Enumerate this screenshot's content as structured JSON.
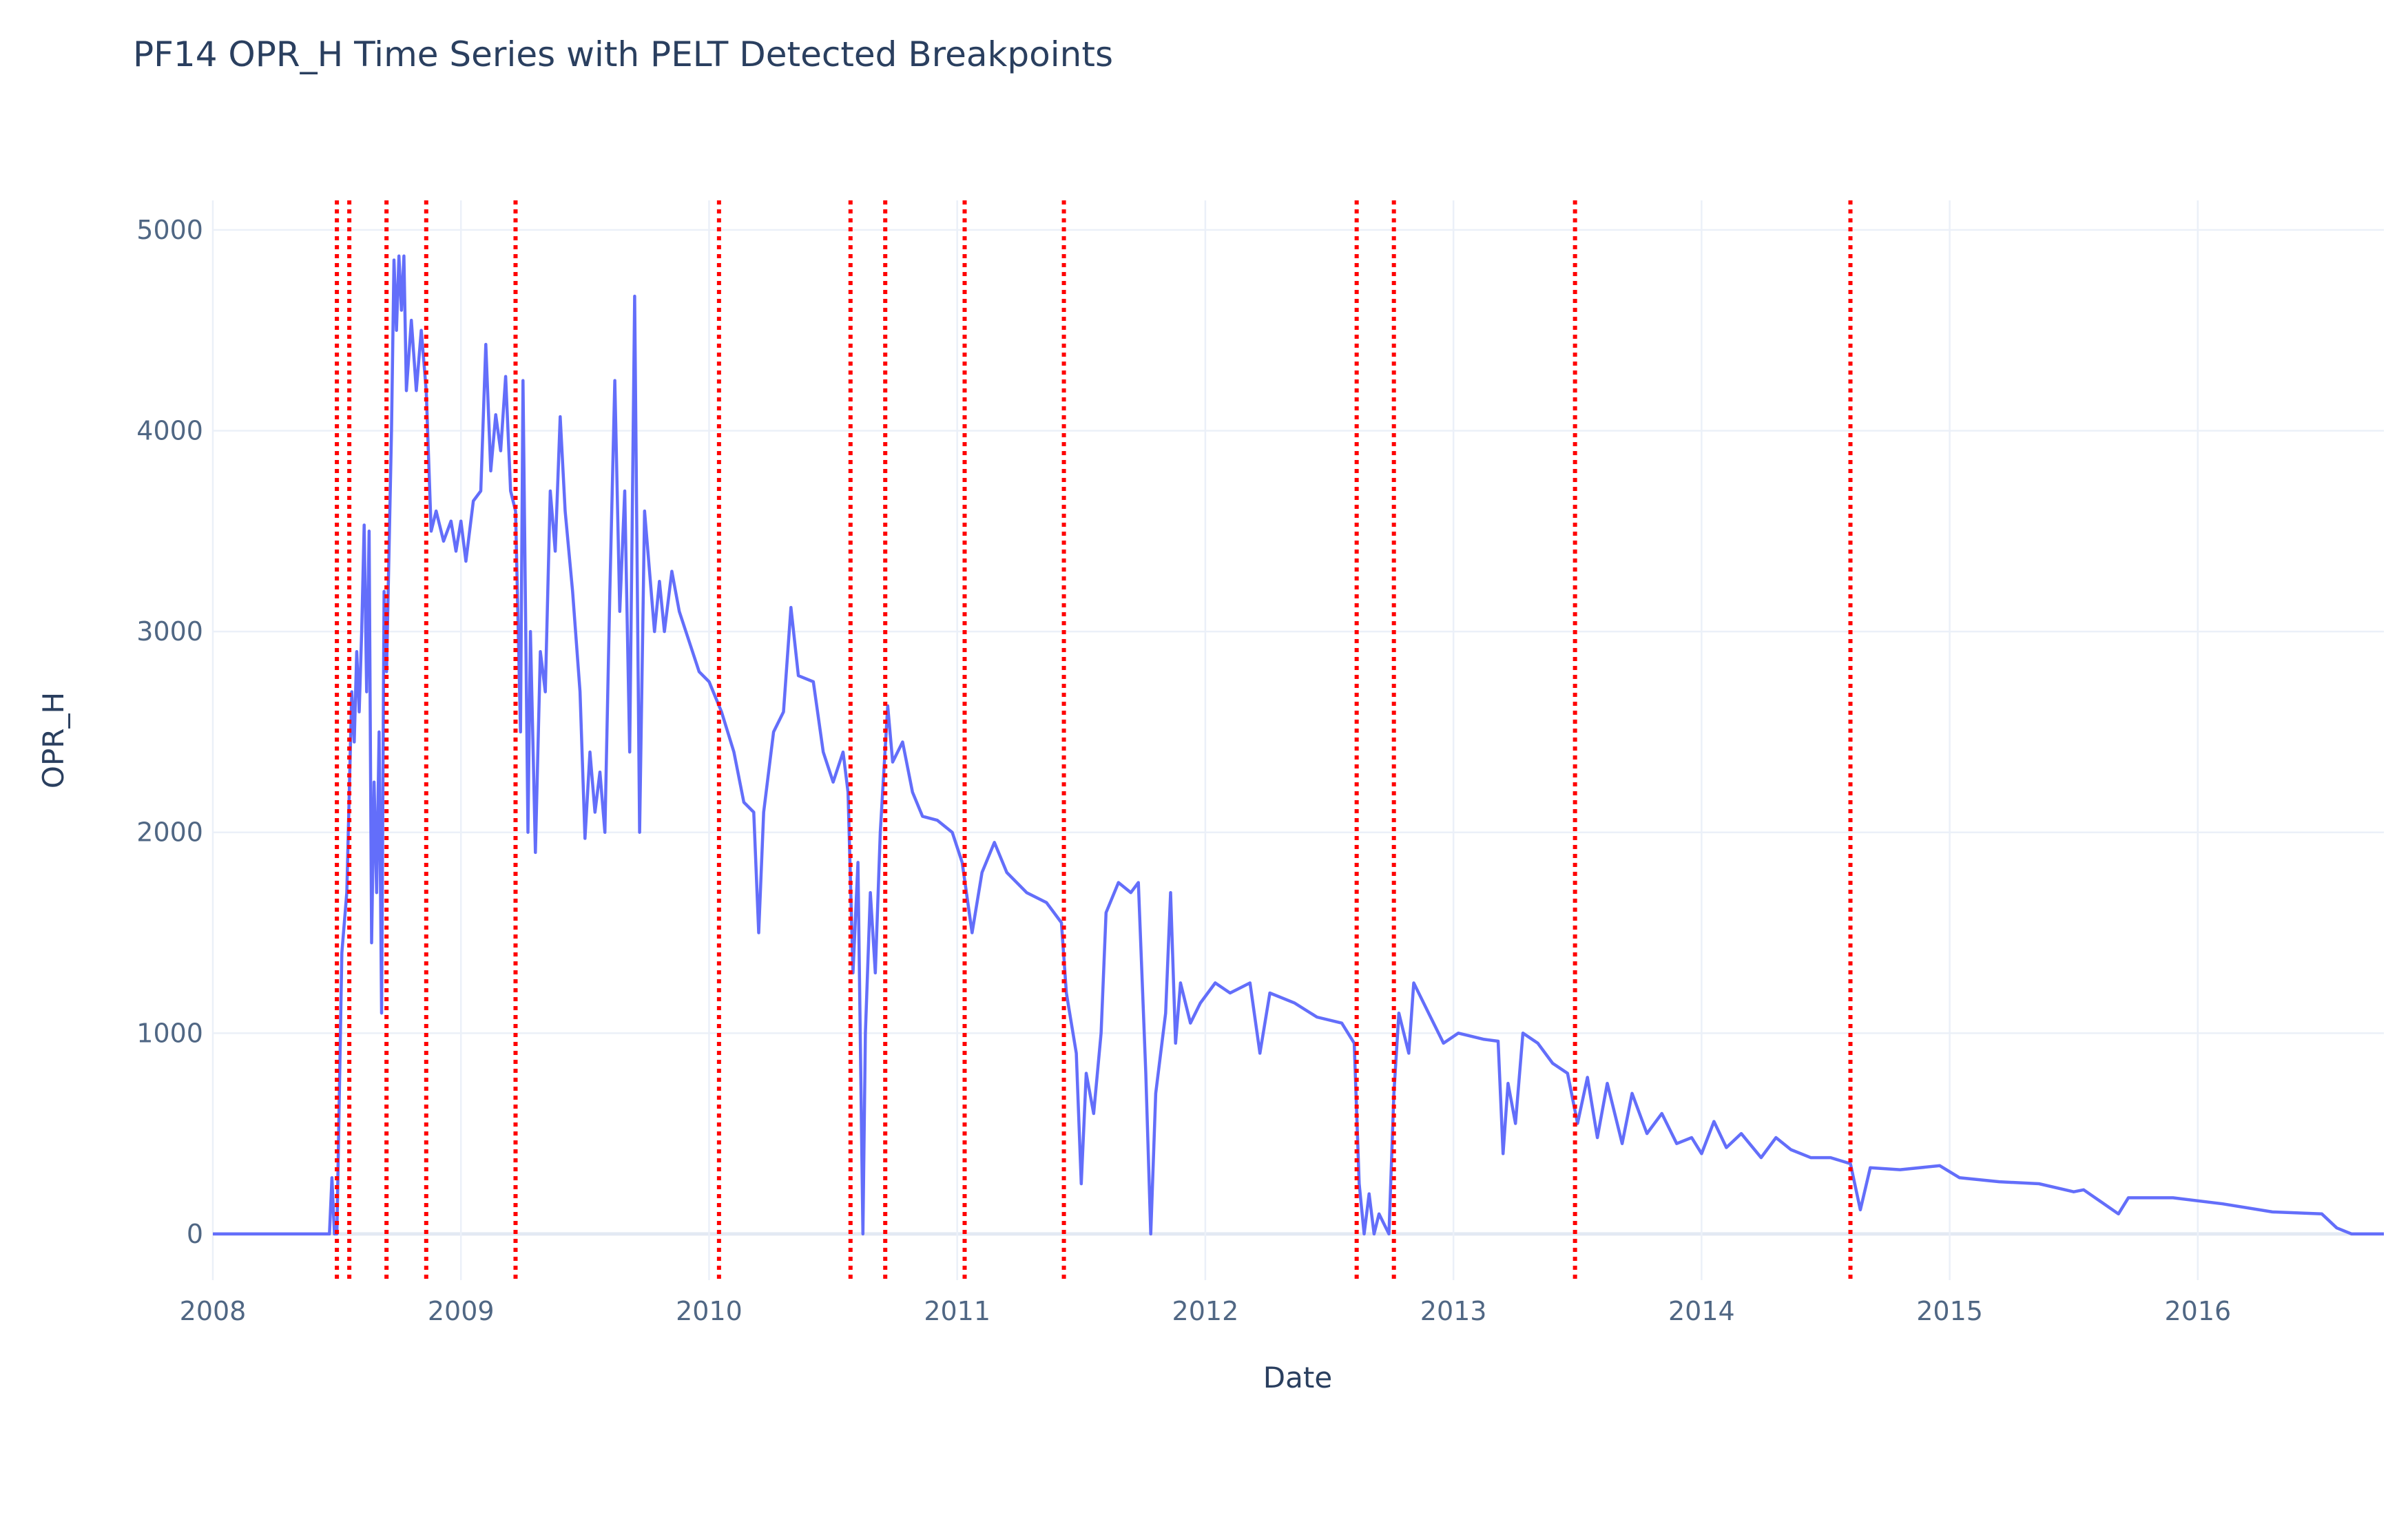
{
  "chart_data": {
    "type": "line",
    "title": "PF14 OPR_H Time Series with PELT Detected Breakpoints",
    "x_label": "Date",
    "y_label": "OPR_H",
    "x": [
      2008.0,
      2008.47,
      2008.48,
      2008.49,
      2008.5,
      2008.52,
      2008.54,
      2008.56,
      2008.57,
      2008.58,
      2008.59,
      2008.6,
      2008.61,
      2008.62,
      2008.63,
      2008.64,
      2008.65,
      2008.66,
      2008.67,
      2008.68,
      2008.69,
      2008.7,
      2008.72,
      2008.73,
      2008.74,
      2008.75,
      2008.76,
      2008.77,
      2008.78,
      2008.8,
      2008.82,
      2008.84,
      2008.86,
      2008.87,
      2008.88,
      2008.9,
      2008.93,
      2008.96,
      2008.98,
      2009.0,
      2009.02,
      2009.05,
      2009.08,
      2009.1,
      2009.12,
      2009.14,
      2009.16,
      2009.18,
      2009.2,
      2009.22,
      2009.24,
      2009.25,
      2009.27,
      2009.28,
      2009.3,
      2009.32,
      2009.34,
      2009.36,
      2009.38,
      2009.4,
      2009.42,
      2009.45,
      2009.48,
      2009.5,
      2009.52,
      2009.54,
      2009.56,
      2009.58,
      2009.6,
      2009.62,
      2009.64,
      2009.66,
      2009.68,
      2009.7,
      2009.72,
      2009.74,
      2009.76,
      2009.78,
      2009.8,
      2009.82,
      2009.85,
      2009.88,
      2009.92,
      2009.96,
      2010.0,
      2010.05,
      2010.1,
      2010.14,
      2010.18,
      2010.2,
      2010.22,
      2010.26,
      2010.3,
      2010.33,
      2010.36,
      2010.42,
      2010.46,
      2010.5,
      2010.54,
      2010.56,
      2010.58,
      2010.6,
      2010.62,
      2010.63,
      2010.65,
      2010.67,
      2010.69,
      2010.72,
      2010.74,
      2010.78,
      2010.82,
      2010.86,
      2010.92,
      2010.98,
      2011.02,
      2011.06,
      2011.1,
      2011.15,
      2011.2,
      2011.28,
      2011.36,
      2011.42,
      2011.44,
      2011.48,
      2011.5,
      2011.52,
      2011.55,
      2011.58,
      2011.6,
      2011.65,
      2011.7,
      2011.73,
      2011.76,
      2011.78,
      2011.8,
      2011.84,
      2011.86,
      2011.88,
      2011.9,
      2011.94,
      2011.98,
      2012.04,
      2012.1,
      2012.18,
      2012.22,
      2012.26,
      2012.36,
      2012.45,
      2012.55,
      2012.6,
      2012.62,
      2012.64,
      2012.66,
      2012.68,
      2012.7,
      2012.74,
      2012.76,
      2012.78,
      2012.82,
      2012.84,
      2012.9,
      2012.96,
      2013.02,
      2013.12,
      2013.18,
      2013.2,
      2013.22,
      2013.25,
      2013.28,
      2013.34,
      2013.4,
      2013.46,
      2013.5,
      2013.54,
      2013.58,
      2013.62,
      2013.68,
      2013.72,
      2013.78,
      2013.84,
      2013.9,
      2013.96,
      2014.0,
      2014.05,
      2014.1,
      2014.16,
      2014.24,
      2014.3,
      2014.36,
      2014.44,
      2014.52,
      2014.6,
      2014.64,
      2014.68,
      2014.8,
      2014.96,
      2015.04,
      2015.2,
      2015.36,
      2015.5,
      2015.54,
      2015.68,
      2015.72,
      2015.9,
      2016.1,
      2016.3,
      2016.5,
      2016.56,
      2016.62,
      2016.75
    ],
    "series": [
      {
        "color": "#636efa",
        "values": [
          0,
          0,
          280,
          0,
          0,
          1400,
          1700,
          2700,
          2450,
          2900,
          2600,
          3000,
          3530,
          2700,
          3500,
          1450,
          2250,
          1700,
          2500,
          1100,
          3200,
          2800,
          4000,
          4850,
          4500,
          4870,
          4600,
          4870,
          4200,
          4550,
          4200,
          4500,
          4200,
          3850,
          3500,
          3600,
          3450,
          3550,
          3400,
          3550,
          3350,
          3650,
          3700,
          4430,
          3800,
          4080,
          3900,
          4270,
          3700,
          3600,
          2500,
          4250,
          2000,
          3000,
          1900,
          2900,
          2700,
          3700,
          3400,
          4070,
          3600,
          3200,
          2700,
          1970,
          2400,
          2100,
          2300,
          2000,
          3200,
          4250,
          3100,
          3700,
          2400,
          4670,
          2000,
          3600,
          3300,
          3000,
          3250,
          3000,
          3300,
          3100,
          2950,
          2800,
          2750,
          2600,
          2400,
          2150,
          2100,
          1500,
          2100,
          2500,
          2600,
          3120,
          2780,
          2750,
          2400,
          2250,
          2400,
          2200,
          1300,
          1850,
          0,
          1000,
          1700,
          1300,
          2000,
          2630,
          2350,
          2450,
          2200,
          2080,
          2060,
          2000,
          1850,
          1500,
          1800,
          1950,
          1800,
          1700,
          1650,
          1550,
          1200,
          900,
          250,
          800,
          600,
          1000,
          1600,
          1750,
          1700,
          1750,
          800,
          0,
          700,
          1100,
          1700,
          950,
          1250,
          1050,
          1150,
          1250,
          1200,
          1250,
          900,
          1200,
          1150,
          1080,
          1050,
          950,
          250,
          0,
          200,
          0,
          100,
          0,
          700,
          1100,
          900,
          1250,
          1100,
          950,
          1000,
          970,
          960,
          400,
          750,
          550,
          1000,
          950,
          850,
          800,
          550,
          780,
          480,
          750,
          450,
          700,
          500,
          600,
          450,
          480,
          400,
          560,
          430,
          500,
          380,
          480,
          420,
          380,
          380,
          350,
          120,
          330,
          320,
          340,
          280,
          260,
          250,
          210,
          220,
          100,
          180,
          180,
          150,
          110,
          100,
          30,
          0,
          0
        ]
      }
    ],
    "breakpoints": [
      2008.5,
      2008.55,
      2008.7,
      2008.86,
      2009.22,
      2010.04,
      2010.57,
      2010.71,
      2011.03,
      2011.43,
      2012.61,
      2012.76,
      2013.49,
      2014.6
    ],
    "breakpoint_color": "#ff0000",
    "xlim": [
      2008,
      2016.75
    ],
    "xticks": [
      2008,
      2009,
      2010,
      2011,
      2012,
      2013,
      2014,
      2015,
      2016
    ],
    "ylim": [
      -230,
      5147
    ],
    "yticks": [
      0,
      1000,
      2000,
      3000,
      4000,
      5000
    ],
    "grid": true
  }
}
